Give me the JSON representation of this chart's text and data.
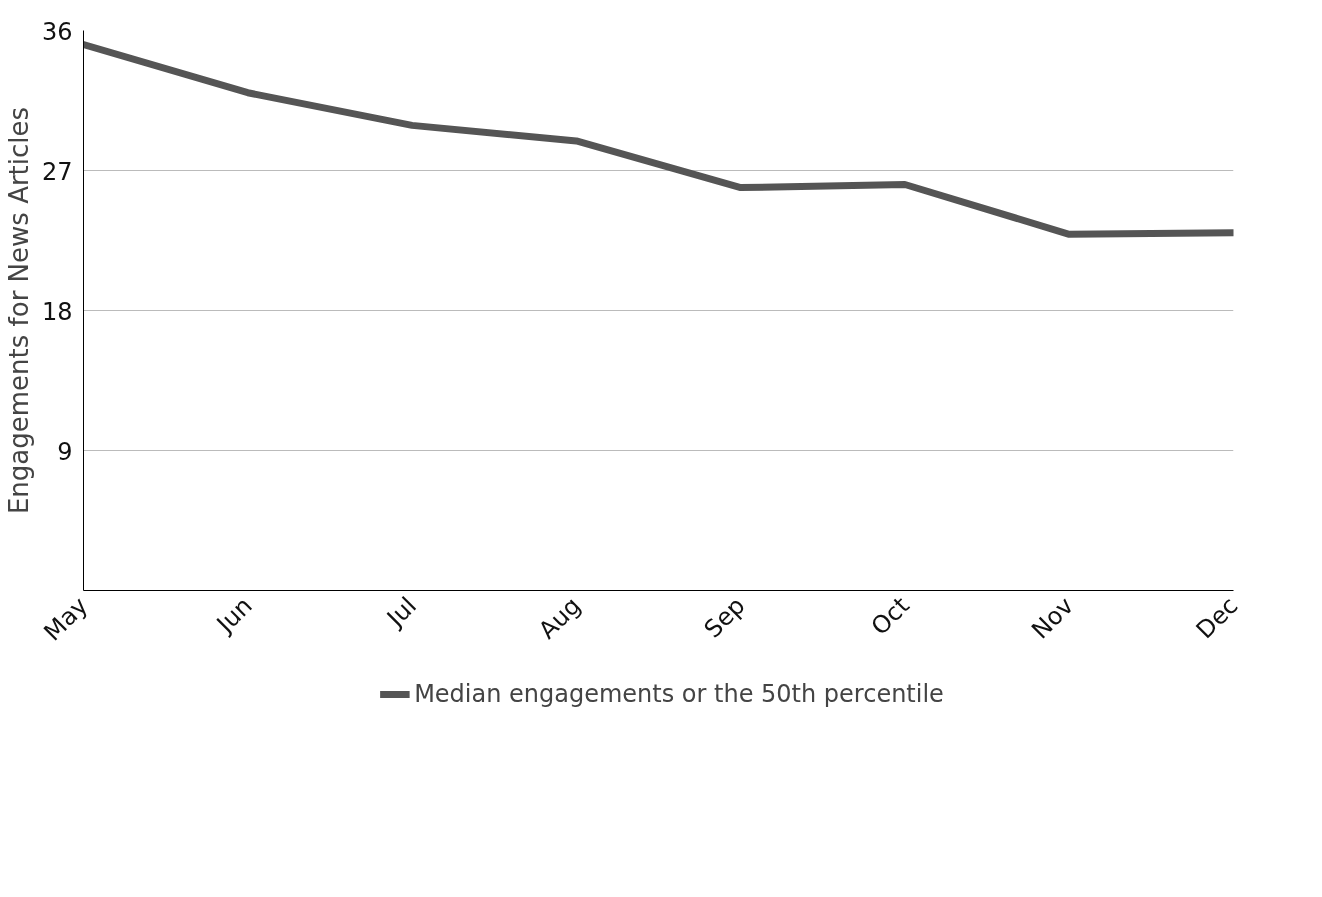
{
  "chart_data": {
    "type": "line",
    "ylabel": "Engagements for News Articles",
    "categories": [
      "May",
      "Jun",
      "Jul",
      "Aug",
      "Sep",
      "Oct",
      "Nov",
      "Dec"
    ],
    "series": [
      {
        "name": "Median engagements or the 50th percentile",
        "color": "#555555",
        "values": [
          35.1,
          32.0,
          29.9,
          28.9,
          25.9,
          26.1,
          22.9,
          23.0
        ]
      }
    ],
    "ylim": [
      0,
      36
    ],
    "yticks": [
      9,
      18,
      27,
      36
    ],
    "grid": "y",
    "legend": "bottom",
    "line_style": "solid",
    "marker": "none"
  }
}
